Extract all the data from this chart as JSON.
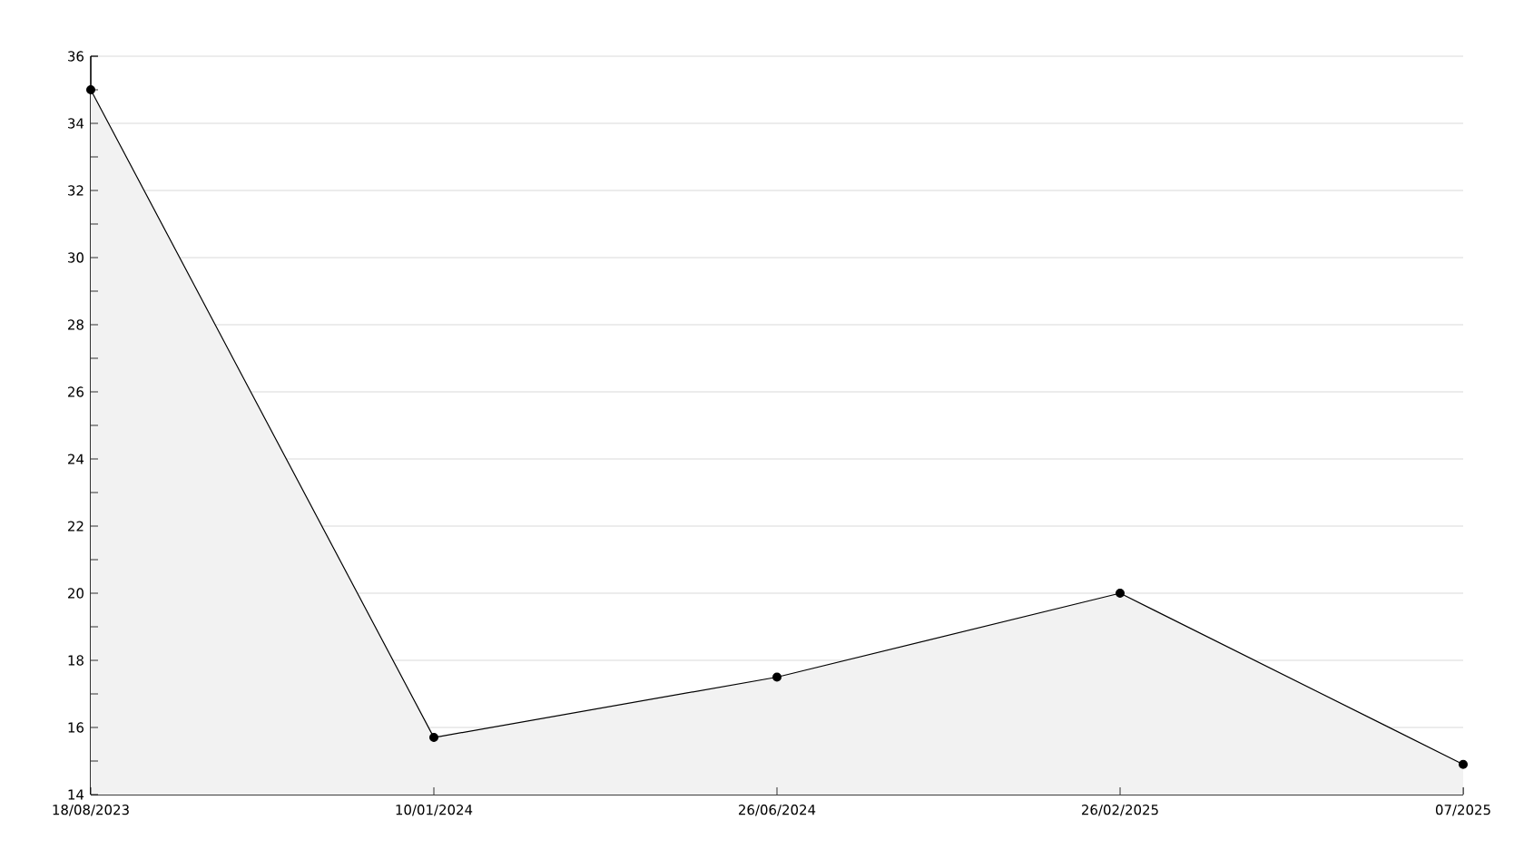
{
  "chart_data": {
    "type": "area",
    "categories": [
      "18/08/2023",
      "10/01/2024",
      "26/06/2024",
      "26/02/2025",
      "07/2025"
    ],
    "series": [
      {
        "color": "#000000",
        "values": [
          35,
          15.7,
          17.5,
          20,
          14.9
        ]
      }
    ],
    "ylim": [
      14,
      36
    ],
    "yticks": [
      14,
      {
        "value": 15,
        "label": null
      },
      16,
      {
        "value": 17,
        "label": null
      },
      18,
      {
        "value": 19,
        "label": null
      },
      20,
      {
        "value": 21,
        "label": null
      },
      22,
      {
        "value": 23,
        "label": null
      },
      24,
      {
        "value": 25,
        "label": null
      },
      26,
      {
        "value": 27,
        "label": null
      },
      28,
      {
        "value": 29,
        "label": null
      },
      30,
      {
        "value": 31,
        "label": null
      },
      32,
      {
        "value": 33,
        "label": null
      },
      34,
      {
        "value": 35,
        "label": null
      },
      36
    ],
    "grid": "y",
    "marker": "circle",
    "line_style": "solid"
  }
}
